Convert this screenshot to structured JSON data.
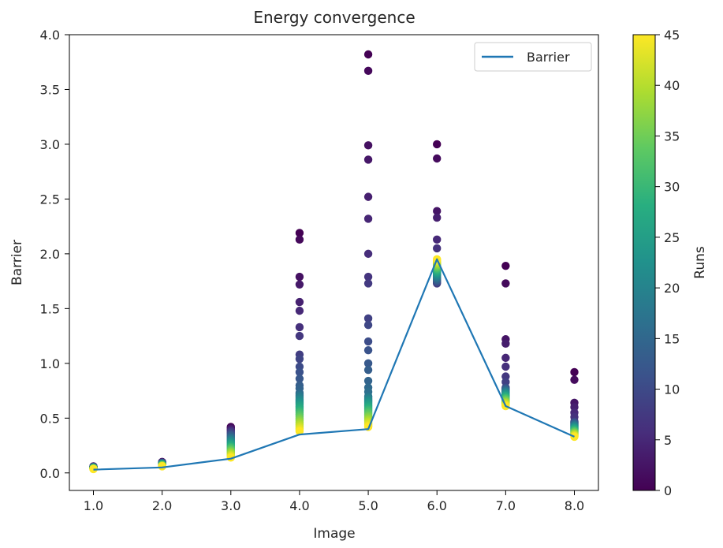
{
  "chart_data": {
    "type": "scatter",
    "title": "Energy convergence",
    "xlabel": "Image",
    "ylabel": "Barrier",
    "xlim": [
      0.65,
      8.35
    ],
    "ylim": [
      -0.16,
      4.0
    ],
    "xticks": [
      1,
      2,
      3,
      4,
      5,
      6,
      7,
      8
    ],
    "xtick_labels": [
      "1.0",
      "2.0",
      "3.0",
      "4.0",
      "5.0",
      "6.0",
      "7.0",
      "8.0"
    ],
    "yticks": [
      0,
      0.5,
      1.0,
      1.5,
      2.0,
      2.5,
      3.0,
      3.5,
      4.0
    ],
    "ytick_labels": [
      "0.0",
      "0.5",
      "1.0",
      "1.5",
      "2.0",
      "2.5",
      "3.0",
      "3.5",
      "4.0"
    ],
    "grid": false,
    "legend": {
      "placement": "top-right",
      "entries": [
        "Barrier"
      ]
    },
    "line_series": {
      "name": "Barrier",
      "color": "#1f77b4",
      "x": [
        1,
        2,
        3,
        4,
        5,
        6,
        7,
        8
      ],
      "y": [
        0.03,
        0.05,
        0.13,
        0.35,
        0.4,
        1.95,
        0.61,
        0.33
      ]
    },
    "colorbar": {
      "label": "Runs",
      "range": [
        0,
        45
      ],
      "ticks": [
        0,
        5,
        10,
        15,
        20,
        25,
        30,
        35,
        40,
        45
      ],
      "tick_labels": [
        "0",
        "5",
        "10",
        "15",
        "20",
        "25",
        "30",
        "35",
        "40",
        "45"
      ],
      "colormap": "viridis"
    },
    "scatter_groups": [
      {
        "x": 1,
        "outliers": [],
        "lo": 0.035,
        "hi": 0.06,
        "end": 0.035
      },
      {
        "x": 2,
        "outliers": [],
        "lo": 0.06,
        "hi": 0.1,
        "end": 0.06
      },
      {
        "x": 3,
        "outliers": [],
        "lo": 0.14,
        "hi": 0.42,
        "end": 0.14
      },
      {
        "x": 4,
        "outliers": [
          2.19,
          2.13,
          1.79,
          1.72,
          1.56,
          1.48,
          1.33,
          1.25,
          1.08,
          1.04,
          0.97,
          0.92,
          0.86,
          0.8,
          0.77
        ],
        "lo": 0.38,
        "hi": 0.73,
        "end": 0.38
      },
      {
        "x": 5,
        "outliers": [
          3.82,
          3.67,
          2.99,
          2.86,
          2.52,
          2.32,
          2.0,
          1.79,
          1.73,
          1.41,
          1.35,
          1.2,
          1.12,
          1.0,
          0.94,
          0.84,
          0.78,
          0.74
        ],
        "lo": 0.42,
        "hi": 0.7,
        "end": 0.42
      },
      {
        "x": 6,
        "outliers": [
          3.0,
          2.87,
          2.39,
          2.33,
          2.13,
          2.05
        ],
        "lo": 1.73,
        "hi": 1.95,
        "end": 1.95
      },
      {
        "x": 7,
        "outliers": [
          1.89,
          1.73,
          1.22,
          1.18,
          1.05,
          0.97,
          0.88,
          0.83
        ],
        "lo": 0.61,
        "hi": 0.78,
        "end": 0.61
      },
      {
        "x": 8,
        "outliers": [
          0.92,
          0.85,
          0.64,
          0.6,
          0.55,
          0.51
        ],
        "lo": 0.33,
        "hi": 0.47,
        "end": 0.33
      }
    ]
  }
}
